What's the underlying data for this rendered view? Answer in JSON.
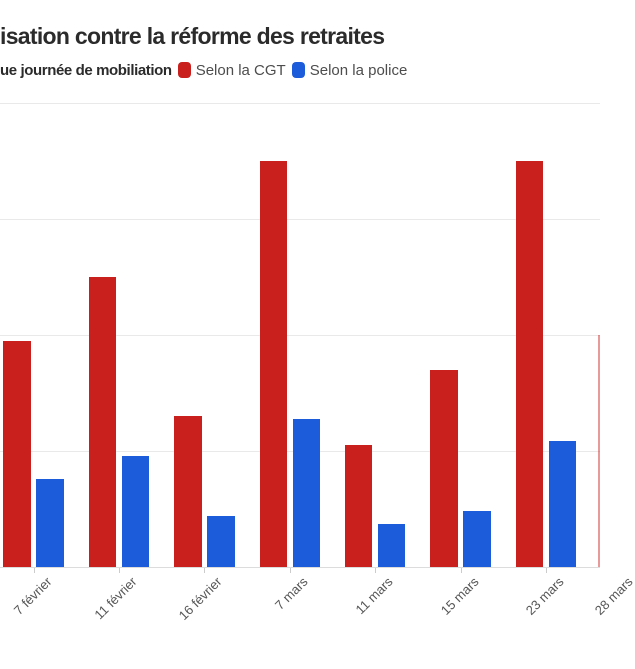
{
  "header": {
    "title": "isation contre la réforme des retraites"
  },
  "legend": {
    "intro": "ue journée de mobiliation",
    "items": [
      {
        "label": "Selon la CGT",
        "color": "#c9201d"
      },
      {
        "label": "Selon la police",
        "color": "#1c5cdb"
      }
    ]
  },
  "chart_data": {
    "type": "bar",
    "title": "isation contre la réforme des retraites",
    "legend_intro": "ue journée de mobiliation",
    "legend_position": "top",
    "grid": true,
    "categories": [
      "7 février",
      "11 février",
      "16 février",
      "7 mars",
      "11 mars",
      "15 mars",
      "23 mars",
      "28 mars"
    ],
    "series": [
      {
        "name": "Selon la CGT",
        "color": "#c9201d",
        "values_millions": [
          1.95,
          2.5,
          1.3,
          3.5,
          1.05,
          1.7,
          3.5,
          2.0
        ]
      },
      {
        "name": "Selon la police",
        "color": "#1c5cdb",
        "values_millions": [
          0.76,
          0.96,
          0.44,
          1.28,
          0.37,
          0.48,
          1.09,
          null
        ]
      }
    ],
    "ylim_millions": [
      0,
      4
    ],
    "gridline_values_millions": [
      1,
      2,
      3,
      4
    ],
    "last_category_partially_visible": true,
    "xlabel": "",
    "ylabel": ""
  }
}
